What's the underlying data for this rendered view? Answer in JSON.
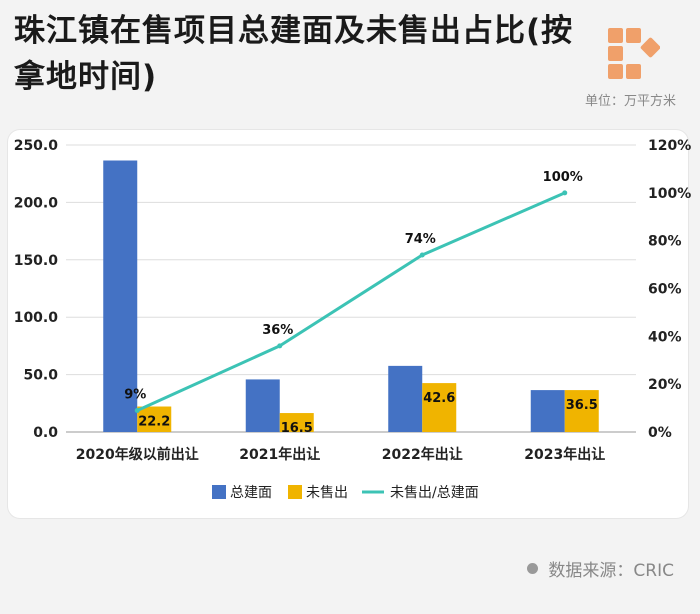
{
  "title": "珠江镇在售项目总建面及未售出占比(按拿地时间)",
  "unit_label": "单位：万平方米",
  "source_label": "数据来源：CRIC",
  "colors": {
    "total_area": "#4472c4",
    "unsold": "#f0b400",
    "ratio_line": "#3cc3b5"
  },
  "chart_data": {
    "type": "bar",
    "categories": [
      "2020年级以前出让",
      "2021年出让",
      "2022年出让",
      "2023年出让"
    ],
    "series": [
      {
        "name": "总建面",
        "type": "bar",
        "axis": "left",
        "values": [
          236.5,
          45.8,
          57.6,
          36.5
        ]
      },
      {
        "name": "未售出",
        "type": "bar",
        "axis": "left",
        "values": [
          22.2,
          16.5,
          42.6,
          36.5
        ],
        "labels": [
          "22.2",
          "16.5",
          "42.6",
          "36.5"
        ]
      },
      {
        "name": "未售出/总建面",
        "type": "line",
        "axis": "right",
        "values": [
          9,
          36,
          74,
          100
        ],
        "labels": [
          "9%",
          "36%",
          "74%",
          "100%"
        ]
      }
    ],
    "y_left": {
      "ylim": [
        0,
        250
      ],
      "ticks": [
        "0.0",
        "50.0",
        "100.0",
        "150.0",
        "200.0",
        "250.0"
      ]
    },
    "y_right": {
      "ylim": [
        0,
        120
      ],
      "ticks": [
        "0%",
        "20%",
        "40%",
        "60%",
        "80%",
        "100%",
        "120%"
      ]
    },
    "legend": {
      "position": "bottom",
      "entries": [
        "总建面",
        "未售出",
        "未售出/总建面"
      ]
    },
    "grid": true
  }
}
